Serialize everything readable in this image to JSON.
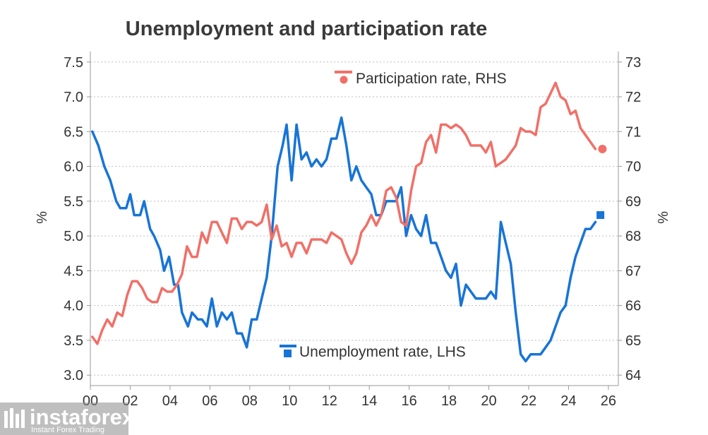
{
  "chart_data": {
    "type": "line",
    "title": "Unemployment and participation rate",
    "xlabel": "",
    "ylabel_left": "%",
    "ylabel_right": "%",
    "x_ticks": [
      "00",
      "02",
      "04",
      "06",
      "08",
      "10",
      "12",
      "14",
      "16",
      "18",
      "20",
      "22",
      "24",
      "26"
    ],
    "xlim": [
      2000,
      2026.5
    ],
    "ylim_left": [
      2.85,
      7.65
    ],
    "ylim_right": [
      63.7,
      73.3
    ],
    "left_ticks": [
      "3.0",
      "3.5",
      "4.0",
      "4.5",
      "5.0",
      "5.5",
      "6.0",
      "6.5",
      "7.0",
      "7.5"
    ],
    "right_ticks": [
      "64",
      "65",
      "66",
      "67",
      "68",
      "69",
      "70",
      "71",
      "72",
      "73"
    ],
    "grid": true,
    "series": [
      {
        "name": "Unemployment rate, LHS",
        "axis": "left",
        "color": "#1874d6",
        "marker": "square",
        "marker_point": {
          "x": 2025.6,
          "y": 5.3
        },
        "points": [
          [
            2000.1,
            6.5
          ],
          [
            2000.4,
            6.3
          ],
          [
            2000.7,
            6.0
          ],
          [
            2001.0,
            5.8
          ],
          [
            2001.3,
            5.5
          ],
          [
            2001.5,
            5.4
          ],
          [
            2001.8,
            5.4
          ],
          [
            2002.0,
            5.6
          ],
          [
            2002.2,
            5.3
          ],
          [
            2002.5,
            5.3
          ],
          [
            2002.7,
            5.5
          ],
          [
            2003.0,
            5.1
          ],
          [
            2003.2,
            5.0
          ],
          [
            2003.5,
            4.8
          ],
          [
            2003.7,
            4.5
          ],
          [
            2003.95,
            4.7
          ],
          [
            2004.2,
            4.3
          ],
          [
            2004.4,
            4.3
          ],
          [
            2004.6,
            3.9
          ],
          [
            2004.9,
            3.7
          ],
          [
            2005.1,
            3.9
          ],
          [
            2005.4,
            3.8
          ],
          [
            2005.6,
            3.8
          ],
          [
            2005.85,
            3.7
          ],
          [
            2006.1,
            4.1
          ],
          [
            2006.35,
            3.7
          ],
          [
            2006.6,
            3.9
          ],
          [
            2006.85,
            3.8
          ],
          [
            2007.1,
            3.9
          ],
          [
            2007.35,
            3.6
          ],
          [
            2007.6,
            3.6
          ],
          [
            2007.85,
            3.4
          ],
          [
            2008.1,
            3.8
          ],
          [
            2008.35,
            3.8
          ],
          [
            2008.6,
            4.1
          ],
          [
            2008.85,
            4.4
          ],
          [
            2009.1,
            5.0
          ],
          [
            2009.4,
            6.0
          ],
          [
            2009.65,
            6.3
          ],
          [
            2009.85,
            6.6
          ],
          [
            2010.1,
            5.8
          ],
          [
            2010.35,
            6.6
          ],
          [
            2010.6,
            6.1
          ],
          [
            2010.85,
            6.2
          ],
          [
            2011.1,
            6.0
          ],
          [
            2011.35,
            6.1
          ],
          [
            2011.6,
            6.0
          ],
          [
            2011.85,
            6.1
          ],
          [
            2012.1,
            6.4
          ],
          [
            2012.35,
            6.4
          ],
          [
            2012.6,
            6.7
          ],
          [
            2012.85,
            6.3
          ],
          [
            2013.1,
            5.8
          ],
          [
            2013.35,
            6.0
          ],
          [
            2013.6,
            5.8
          ],
          [
            2013.85,
            5.7
          ],
          [
            2014.1,
            5.6
          ],
          [
            2014.35,
            5.3
          ],
          [
            2014.6,
            5.3
          ],
          [
            2014.85,
            5.5
          ],
          [
            2015.1,
            5.5
          ],
          [
            2015.35,
            5.5
          ],
          [
            2015.6,
            5.7
          ],
          [
            2015.85,
            5.0
          ],
          [
            2016.1,
            5.3
          ],
          [
            2016.35,
            5.1
          ],
          [
            2016.6,
            5.0
          ],
          [
            2016.85,
            5.3
          ],
          [
            2017.1,
            4.9
          ],
          [
            2017.35,
            4.9
          ],
          [
            2017.6,
            4.7
          ],
          [
            2017.85,
            4.5
          ],
          [
            2018.1,
            4.4
          ],
          [
            2018.35,
            4.6
          ],
          [
            2018.6,
            4.0
          ],
          [
            2018.85,
            4.3
          ],
          [
            2019.1,
            4.2
          ],
          [
            2019.35,
            4.1
          ],
          [
            2019.6,
            4.1
          ],
          [
            2019.85,
            4.1
          ],
          [
            2020.1,
            4.2
          ],
          [
            2020.35,
            4.1
          ],
          [
            2020.6,
            5.2
          ],
          [
            2020.85,
            4.9
          ],
          [
            2021.1,
            4.6
          ],
          [
            2021.35,
            3.9
          ],
          [
            2021.6,
            3.3
          ],
          [
            2021.85,
            3.2
          ],
          [
            2022.1,
            3.3
          ],
          [
            2022.35,
            3.3
          ],
          [
            2022.6,
            3.3
          ],
          [
            2022.85,
            3.4
          ],
          [
            2023.1,
            3.5
          ],
          [
            2023.35,
            3.7
          ],
          [
            2023.6,
            3.9
          ],
          [
            2023.85,
            4.0
          ],
          [
            2024.1,
            4.4
          ],
          [
            2024.35,
            4.7
          ],
          [
            2024.6,
            4.9
          ],
          [
            2024.85,
            5.1
          ],
          [
            2025.1,
            5.1
          ],
          [
            2025.35,
            5.2
          ]
        ]
      },
      {
        "name": "Participation rate, RHS",
        "axis": "right",
        "color": "#f07068",
        "marker": "circle",
        "marker_point": {
          "x": 2025.7,
          "y": 70.5
        },
        "points": [
          [
            2000.1,
            65.1
          ],
          [
            2000.35,
            64.9
          ],
          [
            2000.6,
            65.3
          ],
          [
            2000.85,
            65.6
          ],
          [
            2001.1,
            65.4
          ],
          [
            2001.35,
            65.8
          ],
          [
            2001.6,
            65.7
          ],
          [
            2001.85,
            66.3
          ],
          [
            2002.1,
            66.7
          ],
          [
            2002.35,
            66.7
          ],
          [
            2002.6,
            66.5
          ],
          [
            2002.85,
            66.2
          ],
          [
            2003.1,
            66.1
          ],
          [
            2003.35,
            66.1
          ],
          [
            2003.6,
            66.5
          ],
          [
            2003.85,
            66.4
          ],
          [
            2004.1,
            66.4
          ],
          [
            2004.35,
            66.6
          ],
          [
            2004.6,
            66.9
          ],
          [
            2004.85,
            67.7
          ],
          [
            2005.1,
            67.4
          ],
          [
            2005.35,
            67.4
          ],
          [
            2005.6,
            68.1
          ],
          [
            2005.85,
            67.8
          ],
          [
            2006.1,
            68.4
          ],
          [
            2006.35,
            68.4
          ],
          [
            2006.6,
            68.1
          ],
          [
            2006.85,
            67.8
          ],
          [
            2007.1,
            68.5
          ],
          [
            2007.35,
            68.5
          ],
          [
            2007.6,
            68.2
          ],
          [
            2007.85,
            68.4
          ],
          [
            2008.1,
            68.4
          ],
          [
            2008.35,
            68.3
          ],
          [
            2008.6,
            68.4
          ],
          [
            2008.85,
            68.9
          ],
          [
            2009.1,
            67.9
          ],
          [
            2009.35,
            68.3
          ],
          [
            2009.6,
            67.7
          ],
          [
            2009.85,
            67.8
          ],
          [
            2010.1,
            67.4
          ],
          [
            2010.35,
            67.8
          ],
          [
            2010.6,
            67.8
          ],
          [
            2010.85,
            67.5
          ],
          [
            2011.1,
            67.9
          ],
          [
            2011.35,
            67.9
          ],
          [
            2011.6,
            67.9
          ],
          [
            2011.85,
            67.8
          ],
          [
            2012.1,
            68.1
          ],
          [
            2012.35,
            68.0
          ],
          [
            2012.6,
            67.9
          ],
          [
            2012.85,
            67.5
          ],
          [
            2013.1,
            67.2
          ],
          [
            2013.35,
            67.5
          ],
          [
            2013.6,
            68.1
          ],
          [
            2013.85,
            68.3
          ],
          [
            2014.1,
            68.6
          ],
          [
            2014.35,
            68.3
          ],
          [
            2014.6,
            68.6
          ],
          [
            2014.85,
            69.3
          ],
          [
            2015.1,
            69.4
          ],
          [
            2015.35,
            69.1
          ],
          [
            2015.6,
            68.4
          ],
          [
            2015.85,
            68.3
          ],
          [
            2016.1,
            69.3
          ],
          [
            2016.35,
            70.0
          ],
          [
            2016.6,
            70.1
          ],
          [
            2016.85,
            70.7
          ],
          [
            2017.1,
            70.9
          ],
          [
            2017.35,
            70.4
          ],
          [
            2017.6,
            71.2
          ],
          [
            2017.85,
            71.2
          ],
          [
            2018.1,
            71.1
          ],
          [
            2018.35,
            71.2
          ],
          [
            2018.6,
            71.1
          ],
          [
            2018.85,
            70.9
          ],
          [
            2019.1,
            70.6
          ],
          [
            2019.35,
            70.6
          ],
          [
            2019.6,
            70.6
          ],
          [
            2019.85,
            70.4
          ],
          [
            2020.1,
            70.7
          ],
          [
            2020.35,
            70.0
          ],
          [
            2020.6,
            70.1
          ],
          [
            2020.85,
            70.2
          ],
          [
            2021.1,
            70.4
          ],
          [
            2021.35,
            70.6
          ],
          [
            2021.6,
            71.1
          ],
          [
            2021.85,
            71.0
          ],
          [
            2022.1,
            71.0
          ],
          [
            2022.35,
            70.9
          ],
          [
            2022.6,
            71.7
          ],
          [
            2022.85,
            71.8
          ],
          [
            2023.1,
            72.1
          ],
          [
            2023.35,
            72.4
          ],
          [
            2023.6,
            72.0
          ],
          [
            2023.85,
            71.9
          ],
          [
            2024.1,
            71.5
          ],
          [
            2024.35,
            71.6
          ],
          [
            2024.6,
            71.1
          ],
          [
            2024.85,
            70.9
          ],
          [
            2025.1,
            70.7
          ],
          [
            2025.35,
            70.5
          ]
        ]
      }
    ]
  },
  "watermark": {
    "brand": "instaforex",
    "tagline": "Instant Forex Trading"
  }
}
